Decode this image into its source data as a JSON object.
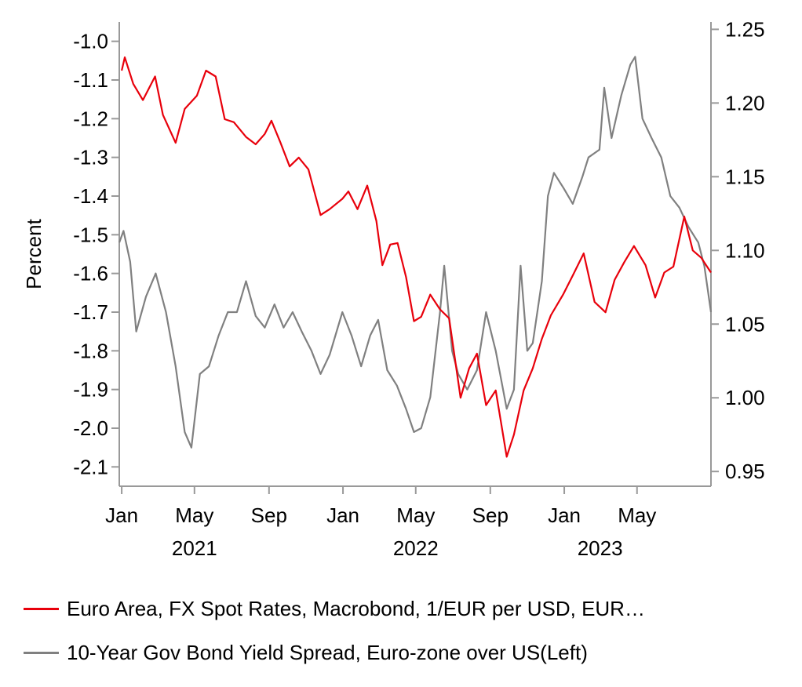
{
  "chart_data": {
    "type": "line",
    "ylabel_left": "Percent",
    "ylabel_right": "",
    "left_axis": {
      "range": [
        -2.15,
        -0.95
      ],
      "ticks": [
        "-1.0",
        "-1.1",
        "-1.2",
        "-1.3",
        "-1.4",
        "-1.5",
        "-1.6",
        "-1.7",
        "-1.8",
        "-1.9",
        "-2.0",
        "-2.1"
      ]
    },
    "right_axis": {
      "range": [
        0.94,
        1.255
      ],
      "ticks": [
        "1.25",
        "1.20",
        "1.15",
        "1.10",
        "1.05",
        "1.00",
        "0.95"
      ]
    },
    "x_axis": {
      "range": [
        "2020-12-28",
        "2023-08-31"
      ],
      "month_ticks": [
        {
          "date": "2021-01-01",
          "label": "Jan"
        },
        {
          "date": "2021-05-01",
          "label": "May"
        },
        {
          "date": "2021-09-01",
          "label": "Sep"
        },
        {
          "date": "2022-01-01",
          "label": "Jan"
        },
        {
          "date": "2022-05-01",
          "label": "May"
        },
        {
          "date": "2022-09-01",
          "label": "Sep"
        },
        {
          "date": "2023-01-01",
          "label": "Jan"
        },
        {
          "date": "2023-05-01",
          "label": "May"
        }
      ],
      "year_labels": [
        {
          "date": "2021-05-01",
          "label": "2021"
        },
        {
          "date": "2022-05-01",
          "label": "2022"
        },
        {
          "date": "2023-03-01",
          "label": "2023"
        }
      ]
    },
    "grid": false,
    "legend_position": "bottom",
    "series": [
      {
        "name": "Euro Area, FX Spot Rates, Macrobond, 1/EUR per USD, EUR…",
        "axis": "right",
        "color": "#e8000b",
        "points": [
          [
            "2021-01-01",
            1.222
          ],
          [
            "2021-01-06",
            1.231
          ],
          [
            "2021-01-20",
            1.213
          ],
          [
            "2021-02-05",
            1.202
          ],
          [
            "2021-02-25",
            1.218
          ],
          [
            "2021-03-10",
            1.192
          ],
          [
            "2021-03-31",
            1.173
          ],
          [
            "2021-04-15",
            1.196
          ],
          [
            "2021-05-05",
            1.205
          ],
          [
            "2021-05-20",
            1.222
          ],
          [
            "2021-06-05",
            1.218
          ],
          [
            "2021-06-20",
            1.189
          ],
          [
            "2021-07-05",
            1.187
          ],
          [
            "2021-07-25",
            1.177
          ],
          [
            "2021-08-10",
            1.172
          ],
          [
            "2021-08-25",
            1.179
          ],
          [
            "2021-09-05",
            1.188
          ],
          [
            "2021-09-20",
            1.173
          ],
          [
            "2021-10-05",
            1.157
          ],
          [
            "2021-10-20",
            1.163
          ],
          [
            "2021-11-05",
            1.155
          ],
          [
            "2021-11-25",
            1.124
          ],
          [
            "2021-12-10",
            1.128
          ],
          [
            "2021-12-31",
            1.135
          ],
          [
            "2022-01-10",
            1.14
          ],
          [
            "2022-01-25",
            1.128
          ],
          [
            "2022-02-10",
            1.144
          ],
          [
            "2022-02-25",
            1.12
          ],
          [
            "2022-03-07",
            1.09
          ],
          [
            "2022-03-20",
            1.104
          ],
          [
            "2022-04-01",
            1.105
          ],
          [
            "2022-04-15",
            1.082
          ],
          [
            "2022-04-28",
            1.052
          ],
          [
            "2022-05-10",
            1.055
          ],
          [
            "2022-05-25",
            1.07
          ],
          [
            "2022-06-10",
            1.06
          ],
          [
            "2022-06-25",
            1.054
          ],
          [
            "2022-07-14",
            1.0
          ],
          [
            "2022-07-28",
            1.02
          ],
          [
            "2022-08-10",
            1.03
          ],
          [
            "2022-08-25",
            0.995
          ],
          [
            "2022-09-10",
            1.005
          ],
          [
            "2022-09-28",
            0.96
          ],
          [
            "2022-10-10",
            0.975
          ],
          [
            "2022-10-26",
            1.005
          ],
          [
            "2022-11-10",
            1.02
          ],
          [
            "2022-11-25",
            1.04
          ],
          [
            "2022-12-10",
            1.056
          ],
          [
            "2022-12-30",
            1.07
          ],
          [
            "2023-01-15",
            1.083
          ],
          [
            "2023-02-02",
            1.098
          ],
          [
            "2023-02-20",
            1.065
          ],
          [
            "2023-03-10",
            1.058
          ],
          [
            "2023-03-25",
            1.08
          ],
          [
            "2023-04-10",
            1.092
          ],
          [
            "2023-04-26",
            1.103
          ],
          [
            "2023-05-15",
            1.09
          ],
          [
            "2023-05-31",
            1.068
          ],
          [
            "2023-06-15",
            1.085
          ],
          [
            "2023-06-30",
            1.089
          ],
          [
            "2023-07-18",
            1.123
          ],
          [
            "2023-08-01",
            1.1
          ],
          [
            "2023-08-15",
            1.095
          ],
          [
            "2023-08-31",
            1.085
          ]
        ]
      },
      {
        "name": "10-Year Gov Bond Yield Spread, Euro-zone over US(Left)",
        "axis": "left",
        "color": "#808080",
        "points": [
          [
            "2020-12-28",
            -1.52
          ],
          [
            "2021-01-04",
            -1.49
          ],
          [
            "2021-01-15",
            -1.57
          ],
          [
            "2021-01-25",
            -1.75
          ],
          [
            "2021-02-10",
            -1.66
          ],
          [
            "2021-02-26",
            -1.6
          ],
          [
            "2021-03-15",
            -1.7
          ],
          [
            "2021-03-31",
            -1.84
          ],
          [
            "2021-04-15",
            -2.01
          ],
          [
            "2021-04-26",
            -2.05
          ],
          [
            "2021-05-10",
            -1.86
          ],
          [
            "2021-05-25",
            -1.84
          ],
          [
            "2021-06-10",
            -1.76
          ],
          [
            "2021-06-25",
            -1.7
          ],
          [
            "2021-07-10",
            -1.7
          ],
          [
            "2021-07-25",
            -1.62
          ],
          [
            "2021-08-10",
            -1.71
          ],
          [
            "2021-08-25",
            -1.74
          ],
          [
            "2021-09-10",
            -1.68
          ],
          [
            "2021-09-25",
            -1.74
          ],
          [
            "2021-10-10",
            -1.7
          ],
          [
            "2021-10-25",
            -1.75
          ],
          [
            "2021-11-10",
            -1.8
          ],
          [
            "2021-11-25",
            -1.86
          ],
          [
            "2021-12-10",
            -1.81
          ],
          [
            "2021-12-31",
            -1.7
          ],
          [
            "2022-01-15",
            -1.76
          ],
          [
            "2022-01-31",
            -1.84
          ],
          [
            "2022-02-15",
            -1.76
          ],
          [
            "2022-02-28",
            -1.72
          ],
          [
            "2022-03-15",
            -1.85
          ],
          [
            "2022-03-31",
            -1.89
          ],
          [
            "2022-04-15",
            -1.95
          ],
          [
            "2022-04-28",
            -2.01
          ],
          [
            "2022-05-10",
            -2.0
          ],
          [
            "2022-05-25",
            -1.92
          ],
          [
            "2022-06-10",
            -1.7
          ],
          [
            "2022-06-17",
            -1.58
          ],
          [
            "2022-06-30",
            -1.8
          ],
          [
            "2022-07-10",
            -1.86
          ],
          [
            "2022-07-25",
            -1.9
          ],
          [
            "2022-08-10",
            -1.85
          ],
          [
            "2022-08-25",
            -1.7
          ],
          [
            "2022-09-10",
            -1.8
          ],
          [
            "2022-09-28",
            -1.95
          ],
          [
            "2022-10-10",
            -1.9
          ],
          [
            "2022-10-21",
            -1.58
          ],
          [
            "2022-11-01",
            -1.8
          ],
          [
            "2022-11-10",
            -1.78
          ],
          [
            "2022-11-25",
            -1.62
          ],
          [
            "2022-12-05",
            -1.4
          ],
          [
            "2022-12-15",
            -1.34
          ],
          [
            "2022-12-31",
            -1.38
          ],
          [
            "2023-01-15",
            -1.42
          ],
          [
            "2023-01-31",
            -1.35
          ],
          [
            "2023-02-10",
            -1.3
          ],
          [
            "2023-02-28",
            -1.28
          ],
          [
            "2023-03-08",
            -1.12
          ],
          [
            "2023-03-20",
            -1.25
          ],
          [
            "2023-04-05",
            -1.14
          ],
          [
            "2023-04-20",
            -1.06
          ],
          [
            "2023-04-28",
            -1.04
          ],
          [
            "2023-05-10",
            -1.2
          ],
          [
            "2023-05-25",
            -1.25
          ],
          [
            "2023-06-10",
            -1.3
          ],
          [
            "2023-06-25",
            -1.4
          ],
          [
            "2023-07-10",
            -1.43
          ],
          [
            "2023-07-25",
            -1.48
          ],
          [
            "2023-08-10",
            -1.52
          ],
          [
            "2023-08-20",
            -1.58
          ],
          [
            "2023-08-31",
            -1.7
          ]
        ]
      }
    ]
  }
}
